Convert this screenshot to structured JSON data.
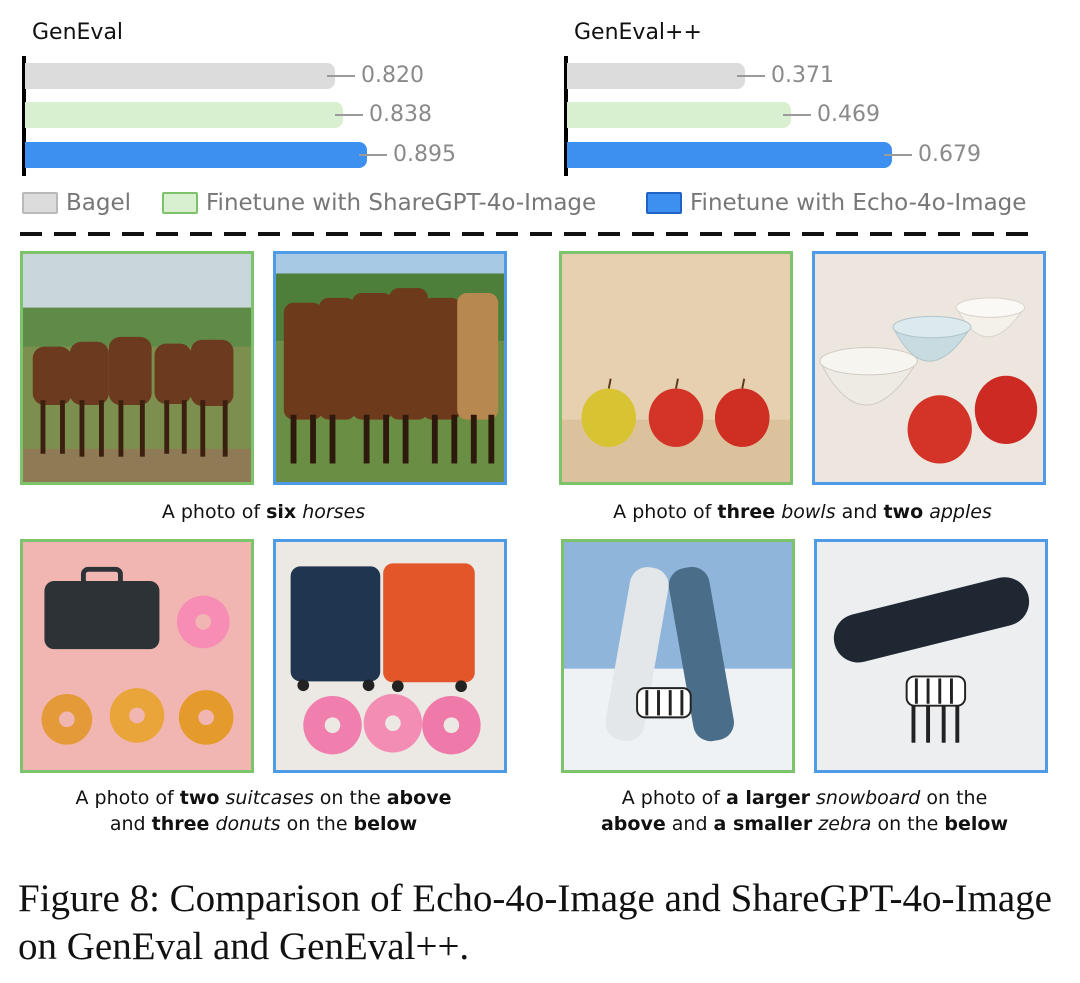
{
  "chart_data": [
    {
      "type": "bar",
      "title": "GenEval",
      "categories": [
        "Bagel",
        "Finetune with ShareGPT-4o-Image",
        "Finetune with Echo-4o-Image"
      ],
      "values": [
        0.82,
        0.838,
        0.895
      ],
      "value_labels": [
        "0.820",
        "0.838",
        "0.895"
      ],
      "orientation": "horizontal"
    },
    {
      "type": "bar",
      "title": "GenEval++",
      "categories": [
        "Bagel",
        "Finetune with ShareGPT-4o-Image",
        "Finetune with Echo-4o-Image"
      ],
      "values": [
        0.371,
        0.469,
        0.679
      ],
      "value_labels": [
        "0.371",
        "0.469",
        "0.679"
      ],
      "orientation": "horizontal"
    }
  ],
  "legend": [
    {
      "label": "Bagel",
      "fill": "#dcdcdc",
      "stroke": "#b9b9b9"
    },
    {
      "label": "Finetune with ShareGPT-4o-Image",
      "fill": "#d8f0cf",
      "stroke": "#7cc36b"
    },
    {
      "label": "Finetune with Echo-4o-Image",
      "fill": "#3d8ff0",
      "stroke": "#1f63c4"
    }
  ],
  "colors": {
    "bagel": "#dcdcdc",
    "sharegpt": "#d8f0cf",
    "echo": "#3d8ff0",
    "green_border": "#7cc36b",
    "blue_border": "#4f9be6"
  },
  "examples": [
    {
      "images": [
        "horses-sharegpt",
        "horses-echo"
      ],
      "caption_parts": [
        {
          "t": "A photo of "
        },
        {
          "t": "six",
          "s": "b"
        },
        {
          "t": " "
        },
        {
          "t": "horses",
          "s": "i"
        }
      ]
    },
    {
      "images": [
        "apples-sharegpt",
        "bowls-apples-echo"
      ],
      "caption_parts": [
        {
          "t": "A photo of "
        },
        {
          "t": "three",
          "s": "b"
        },
        {
          "t": " "
        },
        {
          "t": "bowls",
          "s": "i"
        },
        {
          "t": " and "
        },
        {
          "t": "two",
          "s": "b"
        },
        {
          "t": " "
        },
        {
          "t": "apples",
          "s": "i"
        }
      ]
    },
    {
      "images": [
        "suitcase-donuts-sharegpt",
        "suitcases-donuts-echo"
      ],
      "caption_parts": [
        {
          "t": "A photo of "
        },
        {
          "t": "two",
          "s": "b"
        },
        {
          "t": " "
        },
        {
          "t": "suitcases",
          "s": "i"
        },
        {
          "t": " on the "
        },
        {
          "t": "above",
          "s": "b"
        },
        {
          "t": "\n"
        },
        {
          "t": "and "
        },
        {
          "t": "three",
          "s": "b"
        },
        {
          "t": " "
        },
        {
          "t": "donuts",
          "s": "i"
        },
        {
          "t": " on the "
        },
        {
          "t": "below",
          "s": "b"
        }
      ]
    },
    {
      "images": [
        "snowboards-zebra-sharegpt",
        "snowboard-zebra-echo"
      ],
      "caption_parts": [
        {
          "t": "A photo of "
        },
        {
          "t": "a larger",
          "s": "b"
        },
        {
          "t": " "
        },
        {
          "t": "snowboard",
          "s": "i"
        },
        {
          "t": " on the"
        },
        {
          "t": "\n"
        },
        {
          "t": "above",
          "s": "b"
        },
        {
          "t": " and "
        },
        {
          "t": "a smaller",
          "s": "b"
        },
        {
          "t": " "
        },
        {
          "t": "zebra",
          "s": "i"
        },
        {
          "t": " on the "
        },
        {
          "t": "below",
          "s": "b"
        }
      ]
    }
  ],
  "figure_caption": "Figure 8: Comparison of Echo-4o-Image and ShareGPT-4o-Image on GenEval and GenEval++."
}
